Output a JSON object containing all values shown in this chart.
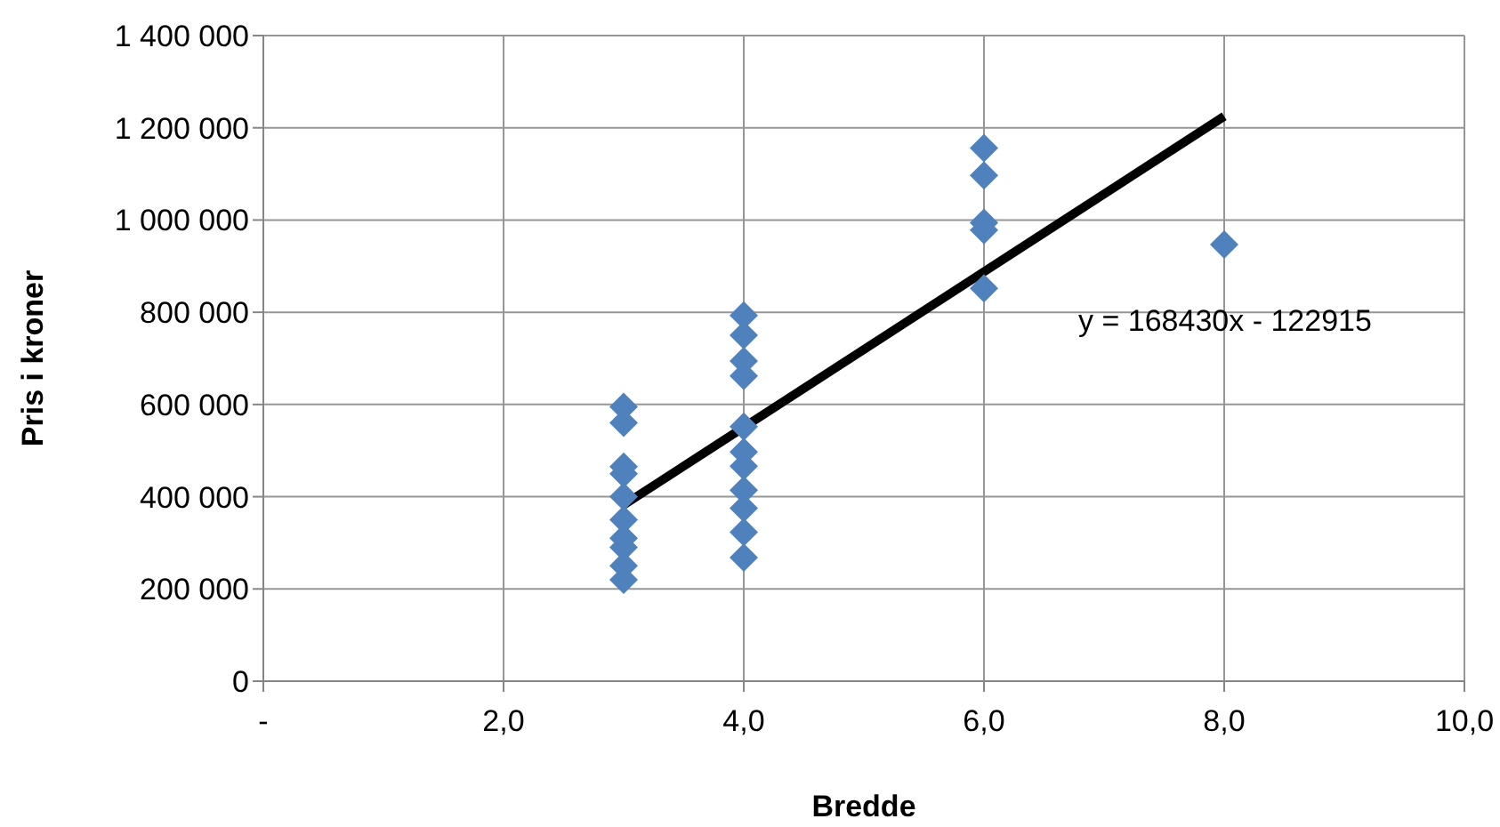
{
  "chart_data": {
    "type": "scatter",
    "xlabel": "Bredde",
    "ylabel": "Pris i kroner",
    "xlim": [
      0,
      10
    ],
    "xticks": [
      {
        "value": 0,
        "label": "-"
      },
      {
        "value": 2,
        "label": "2,0"
      },
      {
        "value": 4,
        "label": "4,0"
      },
      {
        "value": 6,
        "label": "6,0"
      },
      {
        "value": 8,
        "label": "8,0"
      },
      {
        "value": 10,
        "label": "10,0"
      }
    ],
    "ylim": [
      0,
      1400000
    ],
    "yticks": [
      {
        "value": 0,
        "label": "0"
      },
      {
        "value": 200000,
        "label": "200 000"
      },
      {
        "value": 400000,
        "label": "400 000"
      },
      {
        "value": 600000,
        "label": "600 000"
      },
      {
        "value": 800000,
        "label": "800 000"
      },
      {
        "value": 1000000,
        "label": "1 000 000"
      },
      {
        "value": 1200000,
        "label": "1 200 000"
      },
      {
        "value": 1400000,
        "label": "1 400 000"
      }
    ],
    "grid": true,
    "marker": "diamond",
    "annotations": [
      "y = 168430x - 122915"
    ],
    "series": [
      {
        "color": "#4f81bd",
        "x": [
          3,
          3,
          3,
          3,
          3,
          3,
          3,
          3,
          3,
          3,
          4,
          4,
          4,
          4,
          4,
          4,
          4,
          4,
          4,
          4,
          4,
          6,
          6,
          6,
          6,
          6,
          8
        ],
        "values": [
          595000,
          560000,
          465000,
          450000,
          400000,
          350000,
          310000,
          290000,
          250000,
          220000,
          793000,
          750000,
          694000,
          662000,
          552000,
          497000,
          466000,
          414000,
          375000,
          323000,
          268000,
          1156000,
          1097000,
          994000,
          978000,
          852000,
          947000
        ]
      },
      {
        "type": "line",
        "color": "#000000",
        "x": [
          3,
          8
        ],
        "values": [
          382000,
          1225000
        ],
        "marker": "none"
      }
    ]
  }
}
